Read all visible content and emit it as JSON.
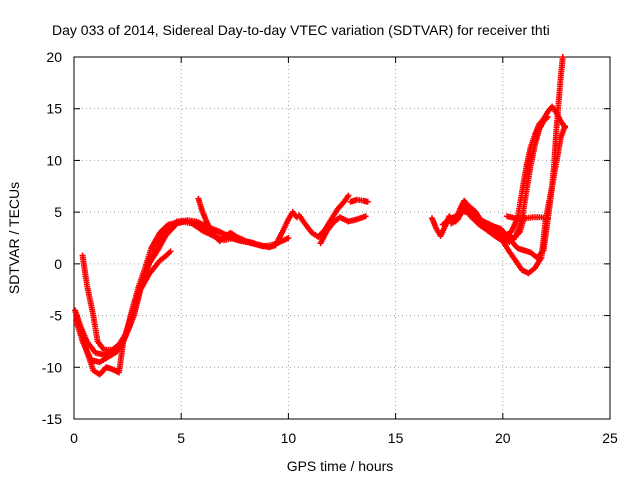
{
  "chart_data": {
    "type": "scatter",
    "title": "Day 033 of 2014, Sidereal Day-to-day VTEC variation (SDTVAR) for receiver thti",
    "xlabel": "GPS time / hours",
    "ylabel": "SDTVAR / TECUs",
    "xlim": [
      0,
      25
    ],
    "ylim": [
      -15,
      20
    ],
    "xticks": [
      0,
      5,
      10,
      15,
      20,
      25
    ],
    "yticks": [
      -15,
      -10,
      -5,
      0,
      5,
      10,
      15,
      20
    ],
    "xtick_labels": [
      "0",
      "5",
      "10",
      "15",
      "20",
      "25"
    ],
    "ytick_labels": [
      "-15",
      "-10",
      "-5",
      "0",
      "5",
      "10",
      "15",
      "20"
    ],
    "grid": true,
    "marker": "plus",
    "color": "#ff0000",
    "series": [
      {
        "name": "arc1",
        "points": [
          [
            0.1,
            -5
          ],
          [
            0.3,
            -6.5
          ],
          [
            0.6,
            -8.5
          ],
          [
            0.9,
            -10.3
          ],
          [
            1.2,
            -10.7
          ],
          [
            1.5,
            -10
          ],
          [
            1.8,
            -10.2
          ],
          [
            2.1,
            -10.5
          ],
          [
            2.3,
            -7.5
          ],
          [
            2.6,
            -5.5
          ],
          [
            2.9,
            -3.5
          ],
          [
            3.2,
            -1.5
          ],
          [
            3.5,
            0
          ],
          [
            3.9,
            1.3
          ],
          [
            4.3,
            2.8
          ],
          [
            4.8,
            3.9
          ],
          [
            5.3,
            4.2
          ],
          [
            5.7,
            4.1
          ],
          [
            6.2,
            3.6
          ],
          [
            6.8,
            3.1
          ],
          [
            7.3,
            2.5
          ],
          [
            7.8,
            2.2
          ],
          [
            8.3,
            2
          ],
          [
            8.8,
            1.7
          ],
          [
            9.2,
            1.8
          ],
          [
            9.6,
            2.1
          ],
          [
            10,
            2.5
          ]
        ]
      },
      {
        "name": "arc2",
        "points": [
          [
            0.05,
            -4.5
          ],
          [
            0.3,
            -6
          ],
          [
            0.6,
            -7.5
          ],
          [
            1,
            -8.6
          ],
          [
            1.4,
            -8.8
          ],
          [
            1.8,
            -8.4
          ],
          [
            2.2,
            -8
          ],
          [
            2.6,
            -6
          ],
          [
            3,
            -3
          ],
          [
            3.3,
            -1
          ],
          [
            3.6,
            0.5
          ],
          [
            4,
            2.2
          ],
          [
            4.4,
            3.4
          ],
          [
            4.8,
            4.1
          ],
          [
            5.3,
            4.2
          ],
          [
            5.8,
            4
          ],
          [
            6.2,
            3.5
          ],
          [
            6.6,
            3.2
          ],
          [
            7.1,
            2.8
          ],
          [
            7.6,
            2.4
          ],
          [
            8.1,
            2.1
          ],
          [
            8.7,
            1.8
          ],
          [
            9.1,
            1.6
          ],
          [
            9.4,
            1.8
          ],
          [
            9.7,
            3
          ],
          [
            10,
            4.3
          ],
          [
            10.2,
            5
          ],
          [
            10.4,
            4.5
          ]
        ]
      },
      {
        "name": "arc3",
        "points": [
          [
            0.4,
            0.8
          ],
          [
            0.6,
            -2
          ],
          [
            0.9,
            -5
          ],
          [
            1.1,
            -7.5
          ],
          [
            1.4,
            -8.3
          ],
          [
            1.8,
            -8.3
          ],
          [
            2.1,
            -7.8
          ],
          [
            2.5,
            -6.5
          ],
          [
            2.8,
            -5
          ],
          [
            3.1,
            -2.5
          ],
          [
            3.5,
            -1
          ],
          [
            4,
            0.3
          ],
          [
            4.3,
            0.8
          ],
          [
            4.5,
            1.2
          ]
        ]
      },
      {
        "name": "arc4",
        "points": [
          [
            0.1,
            -5.5
          ],
          [
            0.4,
            -7.5
          ],
          [
            0.8,
            -9.3
          ],
          [
            1.2,
            -9.5
          ],
          [
            1.6,
            -9
          ],
          [
            2,
            -8.5
          ],
          [
            2.4,
            -7
          ],
          [
            2.7,
            -4.5
          ],
          [
            3,
            -2.3
          ],
          [
            3.3,
            -0.5
          ],
          [
            3.6,
            1.5
          ],
          [
            4,
            3
          ],
          [
            4.4,
            3.8
          ],
          [
            5,
            4.1
          ],
          [
            5.5,
            3.9
          ],
          [
            6,
            3.2
          ],
          [
            6.5,
            2.7
          ],
          [
            7,
            2.3
          ],
          [
            7.5,
            2.5
          ],
          [
            7.9,
            2.3
          ]
        ]
      },
      {
        "name": "arc5",
        "points": [
          [
            5.8,
            6.3
          ],
          [
            6,
            5
          ],
          [
            6.2,
            4
          ],
          [
            6.4,
            3.2
          ],
          [
            6.6,
            2.6
          ],
          [
            6.8,
            2.2
          ],
          [
            7,
            2.6
          ],
          [
            7.3,
            3
          ],
          [
            7.6,
            2.6
          ],
          [
            8,
            2.2
          ],
          [
            8.4,
            2
          ]
        ]
      },
      {
        "name": "arc6",
        "points": [
          [
            10.5,
            4.7
          ],
          [
            10.8,
            3.8
          ],
          [
            11.1,
            3
          ],
          [
            11.4,
            2.6
          ],
          [
            11.7,
            3.3
          ],
          [
            12,
            4.3
          ],
          [
            12.3,
            5.3
          ],
          [
            12.6,
            6
          ],
          [
            12.8,
            6.6
          ]
        ]
      },
      {
        "name": "arc7",
        "points": [
          [
            11.5,
            2
          ],
          [
            11.8,
            3.2
          ],
          [
            12.1,
            4
          ],
          [
            12.4,
            4.5
          ],
          [
            12.8,
            4.1
          ],
          [
            13.2,
            4.3
          ],
          [
            13.6,
            4.6
          ]
        ]
      },
      {
        "name": "arc8",
        "points": [
          [
            12.9,
            6
          ],
          [
            13.2,
            6.2
          ],
          [
            13.5,
            6.1
          ],
          [
            13.7,
            6
          ]
        ]
      },
      {
        "name": "arc9",
        "points": [
          [
            16.7,
            4.4
          ],
          [
            16.9,
            3.4
          ],
          [
            17.1,
            2.7
          ],
          [
            17.3,
            3.6
          ],
          [
            17.5,
            4.6
          ],
          [
            17.8,
            4.1
          ],
          [
            18,
            5.3
          ],
          [
            18.2,
            6.1
          ],
          [
            18.4,
            5.6
          ],
          [
            18.7,
            5.1
          ],
          [
            19,
            4.2
          ],
          [
            19.3,
            3.9
          ],
          [
            19.6,
            3.6
          ],
          [
            19.9,
            3.4
          ],
          [
            20.2,
            2.7
          ],
          [
            20.5,
            2.5
          ],
          [
            20.8,
            3.1
          ],
          [
            21,
            4.5
          ]
        ]
      },
      {
        "name": "arc10",
        "points": [
          [
            17.2,
            3.8
          ],
          [
            17.5,
            4.3
          ],
          [
            17.8,
            4.6
          ],
          [
            18.1,
            5.1
          ],
          [
            18.5,
            4.9
          ],
          [
            18.9,
            4.2
          ],
          [
            19.3,
            3.7
          ],
          [
            19.7,
            3.1
          ],
          [
            20,
            2.6
          ],
          [
            20.3,
            2.1
          ],
          [
            20.6,
            2.6
          ],
          [
            20.9,
            4.3
          ],
          [
            21.1,
            7
          ],
          [
            21.3,
            9.5
          ],
          [
            21.5,
            11.5
          ],
          [
            21.7,
            13
          ],
          [
            21.9,
            13.8
          ],
          [
            22.1,
            14.2
          ]
        ]
      },
      {
        "name": "arc11",
        "points": [
          [
            17.6,
            3.9
          ],
          [
            17.9,
            4.3
          ],
          [
            18.2,
            5.4
          ],
          [
            18.5,
            4.6
          ],
          [
            18.9,
            3.8
          ],
          [
            19.3,
            3.2
          ],
          [
            19.7,
            2.6
          ],
          [
            20,
            2.2
          ],
          [
            20.3,
            1.2
          ],
          [
            20.6,
            0.3
          ],
          [
            20.9,
            -0.6
          ],
          [
            21.2,
            -0.9
          ],
          [
            21.5,
            -0.4
          ],
          [
            21.8,
            0.6
          ],
          [
            22,
            4.3
          ],
          [
            22.3,
            7.5
          ],
          [
            22.5,
            9.8
          ],
          [
            22.7,
            12.2
          ],
          [
            22.9,
            13.3
          ]
        ]
      },
      {
        "name": "arc12",
        "points": [
          [
            17.9,
            4.6
          ],
          [
            18.2,
            5.8
          ],
          [
            18.6,
            5.1
          ],
          [
            19,
            4
          ],
          [
            19.5,
            3.4
          ],
          [
            20,
            2.6
          ],
          [
            20.4,
            3.1
          ],
          [
            20.7,
            4.5
          ],
          [
            20.9,
            7
          ],
          [
            21.1,
            9.4
          ],
          [
            21.3,
            11.3
          ],
          [
            21.5,
            12.5
          ],
          [
            21.7,
            13.5
          ],
          [
            21.9,
            14
          ],
          [
            22.1,
            14.7
          ],
          [
            22.3,
            15.2
          ],
          [
            22.5,
            14.6
          ],
          [
            22.7,
            13.8
          ],
          [
            22.9,
            13.2
          ]
        ]
      },
      {
        "name": "arc13",
        "points": [
          [
            20.4,
            2.2
          ],
          [
            20.7,
            1.5
          ],
          [
            21,
            1.3
          ],
          [
            21.3,
            1.1
          ],
          [
            21.6,
            0.6
          ],
          [
            21.9,
            1.3
          ],
          [
            22.1,
            4.3
          ],
          [
            22.3,
            7.5
          ],
          [
            22.4,
            9.8
          ],
          [
            22.5,
            13
          ],
          [
            22.6,
            15.5
          ],
          [
            22.7,
            18
          ],
          [
            22.8,
            20
          ]
        ]
      },
      {
        "name": "arc14",
        "points": [
          [
            20.2,
            4.6
          ],
          [
            20.6,
            4.4
          ],
          [
            21,
            4.4
          ],
          [
            21.4,
            4.5
          ],
          [
            21.8,
            4.5
          ],
          [
            22.1,
            4.4
          ]
        ]
      }
    ]
  }
}
